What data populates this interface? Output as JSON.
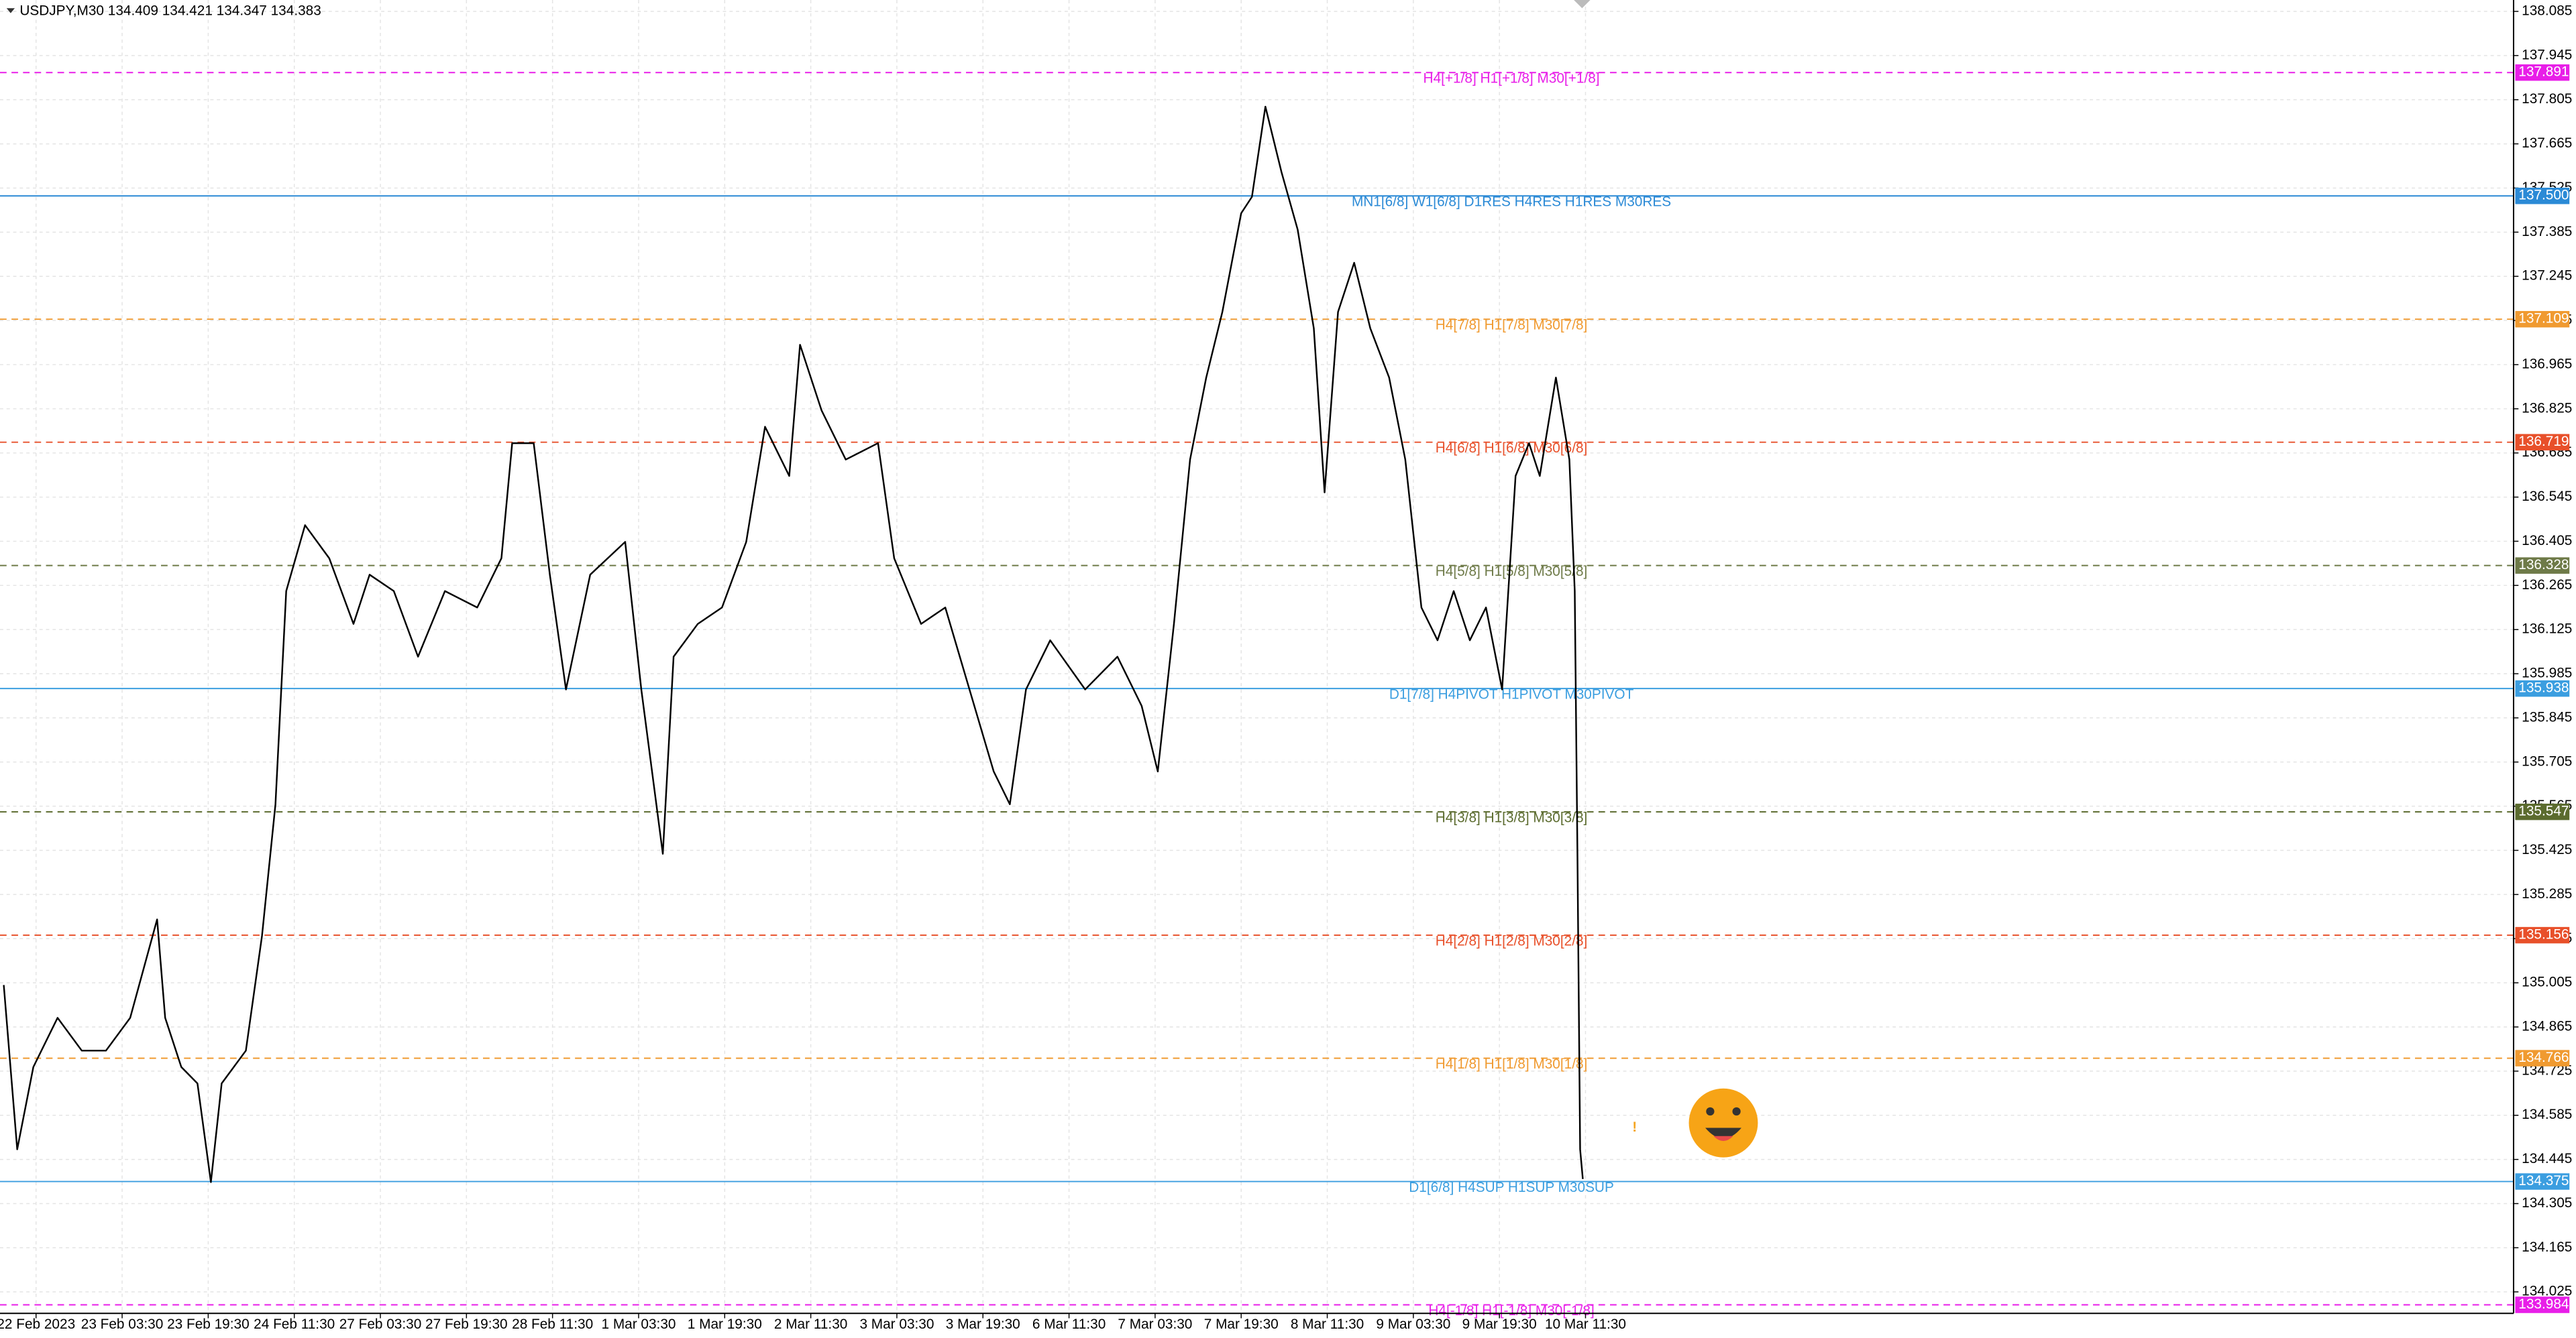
{
  "chart_data": {
    "type": "line",
    "title": "USDJPY,M30  134.409 134.421 134.347 134.383",
    "color": "#000000",
    "grid": true,
    "x": [
      -12,
      -7,
      -1,
      8,
      17,
      26,
      35,
      45,
      48,
      54,
      60,
      65,
      69,
      78,
      84,
      89,
      93,
      100,
      109,
      118,
      124,
      133,
      142,
      152,
      164,
      173,
      177,
      185,
      191,
      197,
      206,
      219,
      225,
      233,
      237,
      246,
      255,
      264,
      271,
      280,
      284,
      292,
      301,
      313,
      319,
      329,
      338,
      347,
      356,
      362,
      368,
      377,
      390,
      402,
      411,
      417,
      423,
      429,
      435,
      441,
      448,
      452,
      457,
      463,
      469,
      475,
      479,
      484,
      490,
      496,
      503,
      509,
      515,
      521,
      527,
      533,
      539,
      545,
      550,
      555,
      559,
      565,
      570,
      572,
      573,
      574,
      575
    ],
    "values": [
      134.998,
      134.477,
      134.738,
      134.894,
      134.79,
      134.79,
      134.894,
      135.206,
      134.894,
      134.738,
      134.686,
      134.373,
      134.686,
      134.79,
      135.154,
      135.571,
      136.247,
      136.456,
      136.351,
      136.143,
      136.299,
      136.247,
      136.039,
      136.247,
      136.195,
      136.351,
      136.716,
      136.716,
      136.299,
      135.935,
      136.299,
      136.403,
      135.935,
      135.414,
      136.039,
      136.143,
      136.195,
      136.403,
      136.768,
      136.612,
      137.028,
      136.82,
      136.664,
      136.716,
      136.351,
      136.143,
      136.195,
      135.935,
      135.675,
      135.571,
      135.935,
      136.091,
      135.935,
      136.039,
      135.883,
      135.675,
      136.143,
      136.664,
      136.924,
      137.132,
      137.445,
      137.497,
      137.783,
      137.575,
      137.393,
      137.08,
      136.56,
      137.132,
      137.288,
      137.08,
      136.924,
      136.664,
      136.195,
      136.091,
      136.247,
      136.091,
      136.195,
      135.935,
      136.612,
      136.716,
      136.612,
      136.924,
      136.664,
      136.247,
      135.414,
      134.477,
      134.383
    ],
    "xlim": [
      -13.4,
      921
    ],
    "xticks": [
      {
        "value": 0,
        "label": "22 Feb 2023"
      },
      {
        "value": 32,
        "label": "23 Feb 03:30"
      },
      {
        "value": 64,
        "label": "23 Feb 19:30"
      },
      {
        "value": 96,
        "label": "24 Feb 11:30"
      },
      {
        "value": 128,
        "label": "27 Feb 03:30"
      },
      {
        "value": 160,
        "label": "27 Feb 19:30"
      },
      {
        "value": 192,
        "label": "28 Feb 11:30"
      },
      {
        "value": 224,
        "label": "1 Mar 03:30"
      },
      {
        "value": 256,
        "label": "1 Mar 19:30"
      },
      {
        "value": 288,
        "label": "2 Mar 11:30"
      },
      {
        "value": 320,
        "label": "3 Mar 03:30"
      },
      {
        "value": 352,
        "label": "3 Mar 19:30"
      },
      {
        "value": 384,
        "label": "6 Mar 11:30"
      },
      {
        "value": 416,
        "label": "7 Mar 03:30"
      },
      {
        "value": 448,
        "label": "7 Mar 19:30"
      },
      {
        "value": 480,
        "label": "8 Mar 11:30"
      },
      {
        "value": 512,
        "label": "9 Mar 03:30"
      },
      {
        "value": 544,
        "label": "9 Mar 19:30"
      },
      {
        "value": 576,
        "label": "10 Mar 11:30"
      }
    ],
    "ylim": [
      133.957,
      138.121
    ],
    "yticks": [
      138.085,
      137.945,
      137.805,
      137.665,
      137.525,
      137.385,
      137.245,
      137.105,
      136.965,
      136.825,
      136.685,
      136.545,
      136.405,
      136.265,
      136.125,
      135.985,
      135.845,
      135.705,
      135.565,
      135.425,
      135.285,
      135.145,
      135.005,
      134.865,
      134.725,
      134.585,
      134.445,
      134.305,
      134.165,
      134.025
    ],
    "levels": [
      {
        "value": 137.891,
        "tag": "137.891",
        "label": "H4[+1/8] H1[+1/8] M30[+1/8]",
        "color": "#e81ee8",
        "dashed": true
      },
      {
        "value": 137.5,
        "tag": "137.500",
        "label": "MN1[6/8] W1[6/8] D1RES H4RES H1RES M30RES",
        "color": "#2b8ad6",
        "dashed": false
      },
      {
        "value": 137.109,
        "tag": "137.109",
        "label": "H4[7/8] H1[7/8] M30[7/8]",
        "color": "#f09a30",
        "dashed": true
      },
      {
        "value": 136.719,
        "tag": "136.719",
        "label": "H4[6/8] H1[6/8] M30[6/8]",
        "color": "#e8502a",
        "dashed": true
      },
      {
        "value": 136.328,
        "tag": "136.328",
        "label": "H4[5/8] H1[5/8] M30[5/8]",
        "color": "#6e7a48",
        "dashed": true
      },
      {
        "value": 135.938,
        "tag": "135.938",
        "label": "D1[7/8] H4PIVOT H1PIVOT M30PIVOT",
        "color": "#3b9ee0",
        "dashed": false
      },
      {
        "value": 135.547,
        "tag": "135.547",
        "label": "H4[3/8] H1[3/8] M30[3/8]",
        "color": "#5b6b2e",
        "dashed": true
      },
      {
        "value": 135.156,
        "tag": "135.156",
        "label": "H4[2/8] H1[2/8] M30[2/8]",
        "color": "#e8502a",
        "dashed": true
      },
      {
        "value": 134.766,
        "tag": "134.766",
        "label": "H4[1/8] H1[1/8] M30[1/8]",
        "color": "#f09a30",
        "dashed": true
      },
      {
        "value": 134.375,
        "tag": "134.375",
        "label": "D1[6/8] H4SUP H1SUP M30SUP",
        "color": "#3b9ee0",
        "dashed": false
      },
      {
        "value": 133.984,
        "tag": "133.984",
        "label": "H4[-1/8] H1[-1/8] M30[-1/8]",
        "color": "#e81ee8",
        "dashed": true
      }
    ]
  }
}
